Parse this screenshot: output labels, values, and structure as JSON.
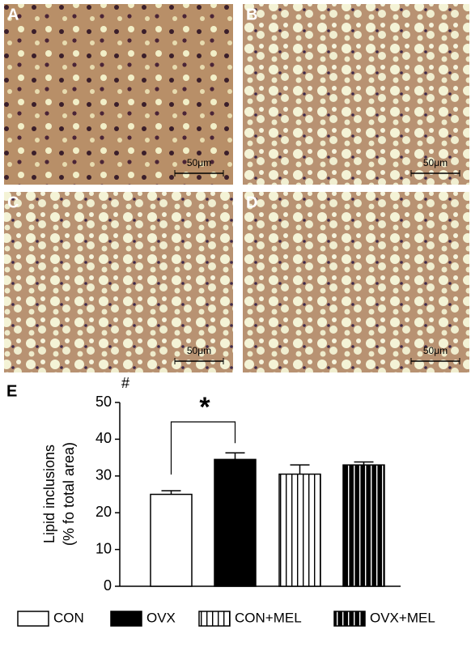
{
  "panels": [
    {
      "label": "A",
      "scale": "50μm"
    },
    {
      "label": "B",
      "scale": "50μm"
    },
    {
      "label": "C",
      "scale": "50μm"
    },
    {
      "label": "D",
      "scale": "50μm"
    }
  ],
  "chart_data": {
    "type": "bar",
    "panel_label": "E",
    "y_label": [
      "Lipid inclusions",
      "(% fo total area)"
    ],
    "annotation": "#",
    "significance": "*",
    "categories": [
      "CON",
      "OVX",
      "CON+MEL",
      "OVX+MEL"
    ],
    "values": [
      25,
      34.5,
      30.5,
      33
    ],
    "errors": [
      1.0,
      1.8,
      2.5,
      0.8
    ],
    "fills": [
      "white",
      "black",
      "white-striped",
      "black-striped"
    ],
    "ylim": [
      0,
      50
    ],
    "yticks": [
      0,
      10,
      20,
      30,
      40,
      50
    ]
  }
}
